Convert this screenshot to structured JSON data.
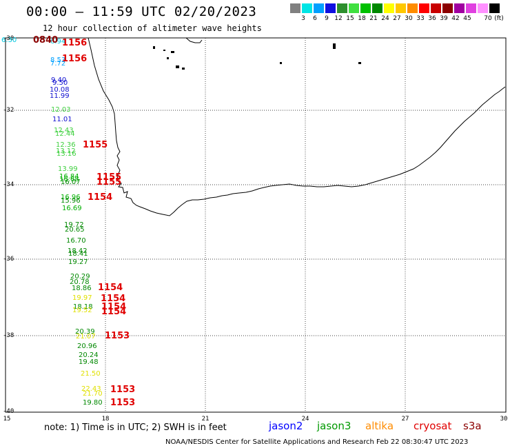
{
  "title": "00:00 – 11:59 UTC 02/20/2023",
  "subtitle": "12 hour collection of altimeter wave heights",
  "legend": {
    "colors": [
      "#808080",
      "#00e5e5",
      "#00a0ff",
      "#1010e0",
      "#2d8f2d",
      "#40e040",
      "#00c000",
      "#008800",
      "#ffff00",
      "#ffc800",
      "#ff8c00",
      "#ff0000",
      "#c80000",
      "#8b0000",
      "#a000a0",
      "#e040e0",
      "#ff90ff",
      "#000000"
    ],
    "ticks": [
      "3",
      "6",
      "9",
      "12",
      "15",
      "18",
      "21",
      "24",
      "27",
      "30",
      "33",
      "36",
      "39",
      "42",
      "45",
      "70"
    ],
    "unit": "(ft)"
  },
  "axes": {
    "lat_labels": [
      "-30",
      "-32",
      "-34",
      "-36",
      "-38",
      "-40"
    ],
    "lon_labels": [
      "15",
      "18",
      "21",
      "24",
      "27",
      "30"
    ]
  },
  "wave_heights": [
    {
      "text": "6.30",
      "color": "#00c8e0"
    },
    {
      "text": "6.94",
      "color": "#00c8e0"
    },
    {
      "text": "8.53",
      "color": "#00a0ff"
    },
    {
      "text": "7.72",
      "color": "#00a0ff"
    },
    {
      "text": "9.40",
      "color": "#1010d0"
    },
    {
      "text": "9.50",
      "color": "#1010d0"
    },
    {
      "text": "10.08",
      "color": "#1010d0"
    },
    {
      "text": "11.99",
      "color": "#1010d0"
    },
    {
      "text": "12.03",
      "color": "#40d040"
    },
    {
      "text": "11.01",
      "color": "#1010d0"
    },
    {
      "text": "12.43",
      "color": "#40d040"
    },
    {
      "text": "12.44",
      "color": "#40d040"
    },
    {
      "text": "12.36",
      "color": "#40d040"
    },
    {
      "text": "13.12",
      "color": "#40d040"
    },
    {
      "text": "13.16",
      "color": "#40d040"
    },
    {
      "text": "13.99",
      "color": "#40d040"
    },
    {
      "text": "16.84",
      "color": "#00b000"
    },
    {
      "text": "16.68",
      "color": "#00b000"
    },
    {
      "text": "16.07",
      "color": "#008800"
    },
    {
      "text": "16.96",
      "color": "#00b000"
    },
    {
      "text": "15.96",
      "color": "#008800"
    },
    {
      "text": "16.69",
      "color": "#00b000"
    },
    {
      "text": "19.72",
      "color": "#008800"
    },
    {
      "text": "20.65",
      "color": "#008800"
    },
    {
      "text": "16.70",
      "color": "#008800"
    },
    {
      "text": "18.42",
      "color": "#008800"
    },
    {
      "text": "18.41",
      "color": "#008800"
    },
    {
      "text": "19.27",
      "color": "#008800"
    },
    {
      "text": "20.29",
      "color": "#008800"
    },
    {
      "text": "20.78",
      "color": "#008800"
    },
    {
      "text": "18.86",
      "color": "#008800"
    },
    {
      "text": "19.97",
      "color": "#e0e000"
    },
    {
      "text": "18.18",
      "color": "#008800"
    },
    {
      "text": "19.52",
      "color": "#e0e000"
    },
    {
      "text": "20.39",
      "color": "#008800"
    },
    {
      "text": "21.07",
      "color": "#e0e000"
    },
    {
      "text": "20.96",
      "color": "#008800"
    },
    {
      "text": "20.24",
      "color": "#008800"
    },
    {
      "text": "19.48",
      "color": "#008800"
    },
    {
      "text": "21.50",
      "color": "#e0e000"
    },
    {
      "text": "22.43",
      "color": "#e0e000"
    },
    {
      "text": "21.70",
      "color": "#e0e000"
    },
    {
      "text": "19.80",
      "color": "#008800"
    }
  ],
  "times": [
    {
      "text": "0840",
      "color": "#8b0000"
    },
    {
      "text": "1156",
      "color": "#e00000"
    },
    {
      "text": "1156",
      "color": "#e00000"
    },
    {
      "text": "1155",
      "color": "#e00000"
    },
    {
      "text": "1155",
      "color": "#e00000"
    },
    {
      "text": "1155",
      "color": "#e00000"
    },
    {
      "text": "1154",
      "color": "#e00000"
    },
    {
      "text": "1154",
      "color": "#e00000"
    },
    {
      "text": "1154",
      "color": "#e00000"
    },
    {
      "text": "1154",
      "color": "#e00000"
    },
    {
      "text": "1154",
      "color": "#e00000"
    },
    {
      "text": "1153",
      "color": "#e00000"
    },
    {
      "text": "1153",
      "color": "#e00000"
    },
    {
      "text": "1153",
      "color": "#e00000"
    }
  ],
  "footer": {
    "note": "note: 1) Time is in UTC; 2) SWH is in feet",
    "satellites": [
      {
        "name": "jason2",
        "color": "#0000ff"
      },
      {
        "name": "jason3",
        "color": "#009900"
      },
      {
        "name": "altika",
        "color": "#ff8c00"
      },
      {
        "name": "cryosat",
        "color": "#e00000"
      },
      {
        "name": "s3a",
        "color": "#8b0000"
      }
    ],
    "credit": "NOAA/NESDIS Center for Satellite Applications and Research    Feb 22 08:30:47 UTC 2023"
  }
}
